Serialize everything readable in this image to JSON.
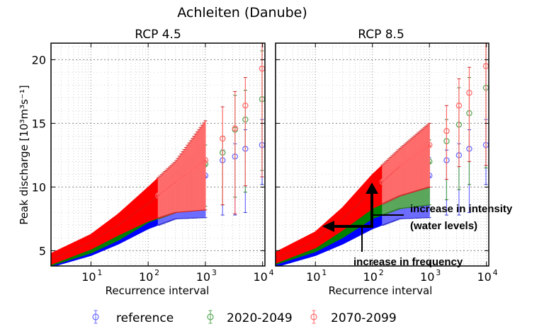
{
  "chart_data": {
    "type": "scatter",
    "title": "Achleiten (Danube)",
    "ylabel": "Peak discharge [10³m³s⁻¹]",
    "legend": {
      "placement": "bottom",
      "entries": [
        {
          "name": "reference",
          "color": "#0000ff"
        },
        {
          "name": "2020-2049",
          "color": "#008000"
        },
        {
          "name": "2070-2099",
          "color": "#ff0000"
        }
      ]
    },
    "panels": [
      {
        "title": "RCP 4.5",
        "xlabel": "Recurrence interval",
        "xscale": "log",
        "xlim": [
          2,
          11000
        ],
        "ylim": [
          3.8,
          21.3
        ],
        "xticks": [
          {
            "value": 10,
            "label": "10",
            "exp": "1"
          },
          {
            "value": 100,
            "label": "10",
            "exp": "2"
          },
          {
            "value": 1000,
            "label": "10",
            "exp": "3"
          },
          {
            "value": 10000,
            "label": "10",
            "exp": "4"
          }
        ],
        "yticks": [
          5,
          10,
          15,
          20
        ],
        "grid": true,
        "series": [
          {
            "name": "reference",
            "color": "#0000ff",
            "x": [
              2,
              10,
              30,
              100,
              300,
              1000,
              2000,
              3300,
              5000,
              9800
            ],
            "y": [
              3.9,
              5.0,
              6.1,
              7.6,
              9.2,
              10.9,
              12.1,
              12.4,
              13.0,
              13.3
            ],
            "lower": [
              3.7,
              4.6,
              5.5,
              6.7,
              7.5,
              7.6,
              7.8,
              7.8,
              8.0,
              10.2
            ],
            "upper": [
              4.1,
              5.4,
              6.7,
              8.6,
              10.3,
              12.3,
              12.9,
              13.4,
              14.5,
              15.3
            ]
          },
          {
            "name": "2020-2049",
            "color": "#008000",
            "x": [
              2,
              10,
              30,
              100,
              300,
              1000,
              2000,
              3300,
              5000,
              9800
            ],
            "y": [
              4.1,
              5.3,
              6.5,
              8.2,
              9.9,
              11.8,
              12.7,
              14.5,
              15.3,
              16.9
            ],
            "lower": [
              3.8,
              4.8,
              5.8,
              7.2,
              8.0,
              8.5,
              8.6,
              9.2,
              9.6,
              11.3
            ],
            "upper": [
              4.4,
              5.8,
              7.2,
              9.2,
              11.2,
              13.3,
              14.0,
              17.2,
              17.6,
              20.7
            ]
          },
          {
            "name": "2070-2099",
            "color": "#ff0000",
            "x": [
              2,
              10,
              30,
              100,
              300,
              1000,
              2000,
              3300,
              5000,
              9800
            ],
            "y": [
              4.3,
              5.7,
              7.0,
              8.7,
              10.4,
              12.1,
              13.8,
              14.6,
              16.4,
              19.3
            ],
            "lower": [
              3.9,
              5.1,
              6.2,
              7.3,
              8.0,
              8.2,
              8.6,
              7.9,
              10.1,
              10.8
            ],
            "upper": [
              4.8,
              6.3,
              7.9,
              10.0,
              12.0,
              15.2,
              16.3,
              17.5,
              18.6,
              21.3
            ]
          }
        ]
      },
      {
        "title": "RCP 8.5",
        "xlabel": "Recurrence interval",
        "xscale": "log",
        "xlim": [
          2,
          11000
        ],
        "ylim": [
          3.8,
          21.3
        ],
        "xticks": [
          {
            "value": 10,
            "label": "10",
            "exp": "1"
          },
          {
            "value": 100,
            "label": "10",
            "exp": "2"
          },
          {
            "value": 1000,
            "label": "10",
            "exp": "3"
          },
          {
            "value": 10000,
            "label": "10",
            "exp": "4"
          }
        ],
        "yticks": [
          5,
          10,
          15,
          20
        ],
        "grid": true,
        "series": [
          {
            "name": "reference",
            "color": "#0000ff",
            "x": [
              2,
              10,
              30,
              100,
              300,
              1000,
              2000,
              3300,
              5000,
              9800
            ],
            "y": [
              3.9,
              5.0,
              6.1,
              7.6,
              9.2,
              10.9,
              12.1,
              12.5,
              13.0,
              13.3
            ],
            "lower": [
              3.7,
              4.6,
              5.5,
              6.7,
              7.5,
              7.6,
              7.8,
              7.8,
              8.0,
              10.2
            ],
            "upper": [
              4.1,
              5.4,
              6.7,
              8.6,
              10.3,
              12.3,
              12.9,
              13.4,
              14.5,
              15.3
            ]
          },
          {
            "name": "2020-2049",
            "color": "#008000",
            "x": [
              2,
              10,
              30,
              100,
              300,
              1000,
              2000,
              3300,
              5000,
              9800
            ],
            "y": [
              4.2,
              5.4,
              6.8,
              8.6,
              10.3,
              12.0,
              13.6,
              14.9,
              15.8,
              17.8
            ],
            "lower": [
              3.9,
              4.9,
              6.0,
              7.5,
              8.3,
              8.6,
              9.0,
              9.8,
              10.2,
              11.5
            ],
            "upper": [
              4.5,
              5.9,
              7.5,
              9.6,
              11.7,
              13.7,
              15.3,
              17.8,
              18.6,
              21.3
            ]
          },
          {
            "name": "2070-2099",
            "color": "#ff0000",
            "x": [
              2,
              10,
              30,
              100,
              300,
              1000,
              2000,
              3300,
              5000,
              9800
            ],
            "y": [
              4.4,
              5.8,
              7.5,
              9.7,
              11.6,
              13.3,
              14.4,
              16.4,
              17.4,
              19.5
            ],
            "lower": [
              4.0,
              5.2,
              6.6,
              8.3,
              9.3,
              10.0,
              10.6,
              11.6,
              12.0,
              11.7
            ],
            "upper": [
              4.9,
              6.5,
              8.4,
              11.0,
              13.0,
              15.0,
              16.4,
              18.5,
              19.4,
              21.3
            ]
          }
        ]
      }
    ],
    "annotations": {
      "intensity": [
        "increase in intensity",
        "(water levels)"
      ],
      "frequency": "increase in frequency"
    }
  }
}
